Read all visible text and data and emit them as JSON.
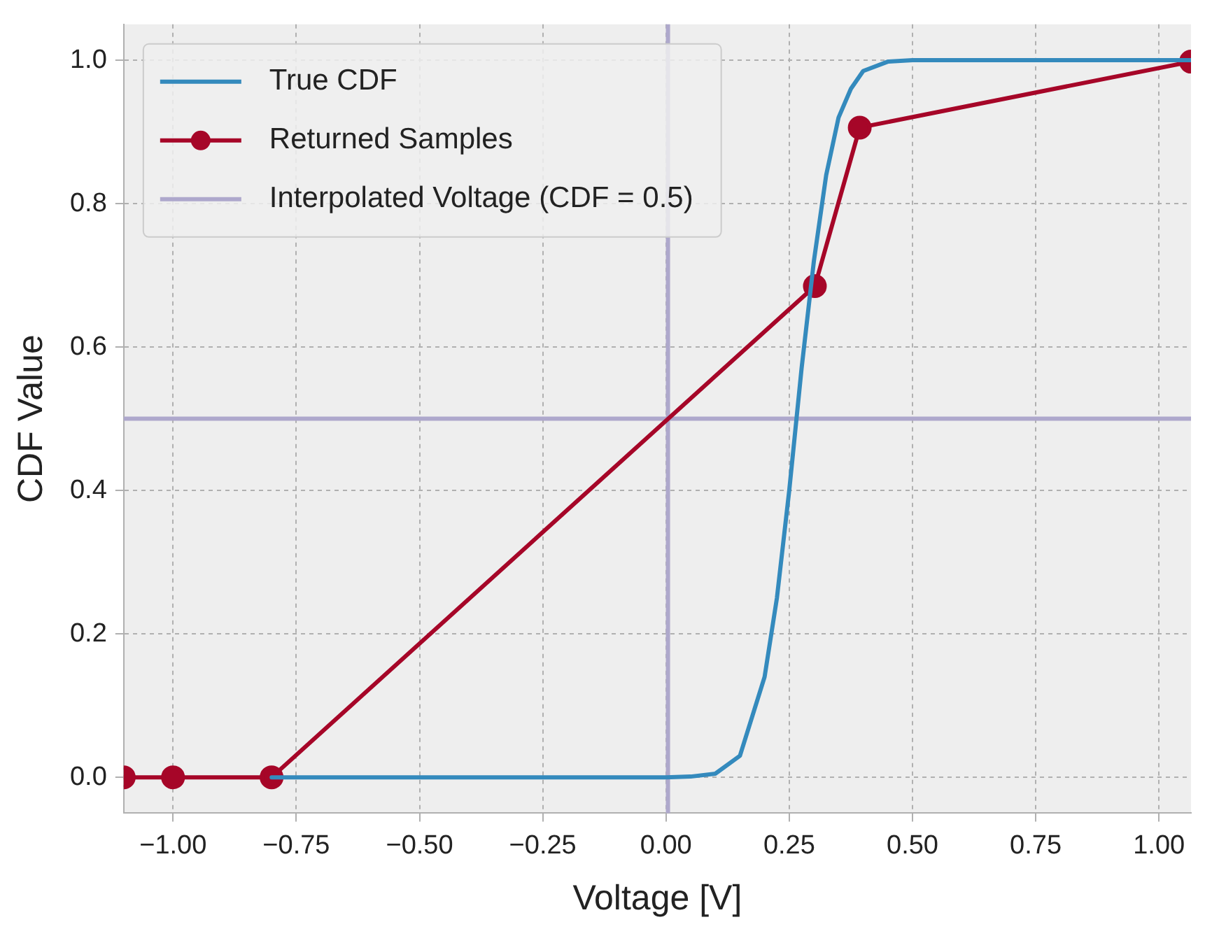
{
  "chart_data": {
    "type": "line",
    "xlabel": "Voltage [V]",
    "ylabel": "CDF Value",
    "xlim": [
      -1.1,
      1.065
    ],
    "ylim": [
      -0.05,
      1.05
    ],
    "xticks": [
      {
        "value": -1,
        "label": "−1.00"
      },
      {
        "value": -0.75,
        "label": "−0.75"
      },
      {
        "value": -0.5,
        "label": "−0.50"
      },
      {
        "value": -0.25,
        "label": "−0.25"
      },
      {
        "value": 0,
        "label": "0.00"
      },
      {
        "value": 0.25,
        "label": "0.25"
      },
      {
        "value": 0.5,
        "label": "0.50"
      },
      {
        "value": 0.75,
        "label": "0.75"
      },
      {
        "value": 1,
        "label": "1.00"
      }
    ],
    "yticks": [
      {
        "value": 0,
        "label": "0.0"
      },
      {
        "value": 0.2,
        "label": "0.2"
      },
      {
        "value": 0.4,
        "label": "0.4"
      },
      {
        "value": 0.6,
        "label": "0.6"
      },
      {
        "value": 0.8,
        "label": "0.8"
      },
      {
        "value": 1,
        "label": "1.0"
      }
    ],
    "grid": true,
    "legend": "top left",
    "line_style": "solid",
    "series": [
      {
        "name": "True CDF",
        "color": "#348abd",
        "marker": "none",
        "x": [
          -0.8,
          0,
          0.05,
          0.1,
          0.15,
          0.2,
          0.225,
          0.25,
          0.275,
          0.3,
          0.325,
          0.35,
          0.375,
          0.4,
          0.45,
          0.5,
          0.75,
          1.065
        ],
        "values": [
          0,
          0,
          0.001,
          0.005,
          0.03,
          0.14,
          0.25,
          0.4,
          0.57,
          0.72,
          0.84,
          0.92,
          0.96,
          0.985,
          0.998,
          1,
          1,
          1
        ]
      },
      {
        "name": "Returned Samples",
        "color": "#a60628",
        "marker": "circle",
        "x": [
          -1.1,
          -1.0,
          -0.8,
          0.302,
          0.393,
          1.065
        ],
        "values": [
          0,
          0,
          0,
          0.685,
          0.906,
          0.998
        ]
      }
    ],
    "ref_lines": [
      {
        "axis": "y",
        "value": 0.5,
        "label": "Interpolated Voltage (CDF = 0.5)",
        "color": "#aea8cc"
      },
      {
        "axis": "x",
        "value": 0.004,
        "color": "#aea8cc"
      }
    ]
  }
}
